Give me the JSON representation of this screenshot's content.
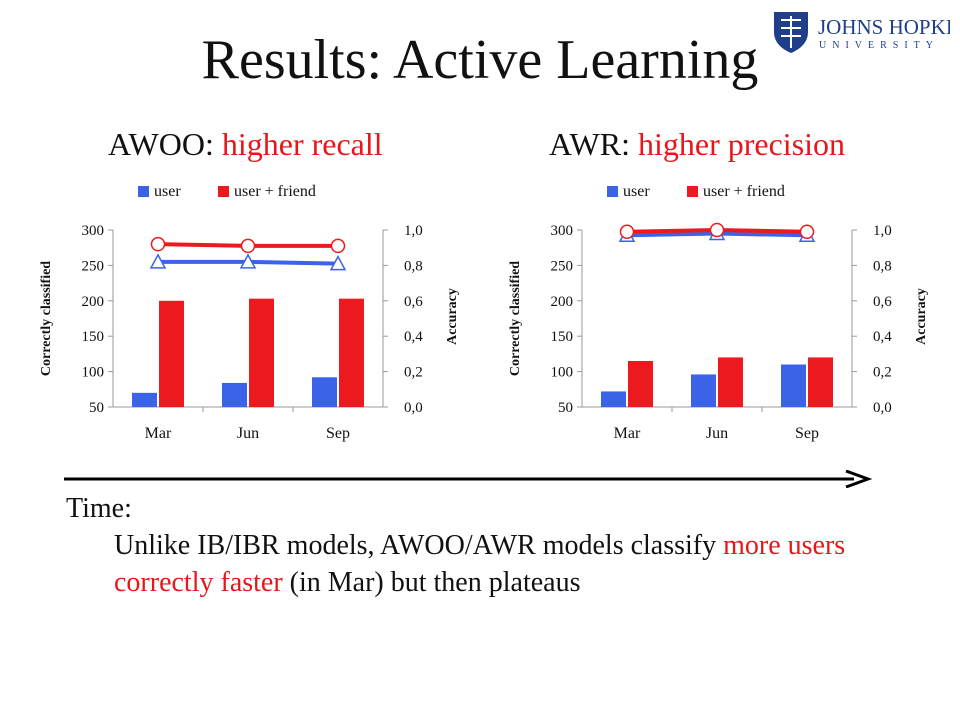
{
  "title": "Results: Active Learning",
  "logo": {
    "line1": "JOHNS HOPKINS",
    "line2": "UNIVERSITY"
  },
  "colors": {
    "user": "#3a63e8",
    "user_friend": "#ec1a1e",
    "accent_text": "#e8161b"
  },
  "panels": [
    {
      "model": "AWOO",
      "separator": ": ",
      "highlight": "higher recall"
    },
    {
      "model": "AWR",
      "separator": ": ",
      "highlight": "higher precision"
    }
  ],
  "chart_data": [
    {
      "type": "bar",
      "categories": [
        "Mar",
        "Jun",
        "Sep"
      ],
      "legend": [
        "user",
        "user + friend"
      ],
      "ylabel": "Correctly classified",
      "ylabel_right": "Accuracy",
      "ylim": [
        50,
        300
      ],
      "yticks": [
        "50",
        "100",
        "150",
        "200",
        "250",
        "300"
      ],
      "ylim_right": [
        0,
        1
      ],
      "yticks_right": [
        "0,0",
        "0,2",
        "0,4",
        "0,6",
        "0,8",
        "1,0"
      ],
      "series": [
        {
          "name": "user",
          "kind": "bar",
          "values": [
            70,
            84,
            92
          ]
        },
        {
          "name": "user + friend",
          "kind": "bar",
          "values": [
            200,
            203,
            203
          ]
        }
      ],
      "accuracy_series": [
        {
          "name": "user",
          "marker": "triangle",
          "values": [
            0.82,
            0.82,
            0.81
          ]
        },
        {
          "name": "user + friend",
          "marker": "circle",
          "values": [
            0.92,
            0.91,
            0.91
          ]
        }
      ]
    },
    {
      "type": "bar",
      "categories": [
        "Mar",
        "Jun",
        "Sep"
      ],
      "legend": [
        "user",
        "user + friend"
      ],
      "ylabel": "Correctly classified",
      "ylabel_right": "Accuracy",
      "ylim": [
        50,
        300
      ],
      "yticks": [
        "50",
        "100",
        "150",
        "200",
        "250",
        "300"
      ],
      "ylim_right": [
        0,
        1
      ],
      "yticks_right": [
        "0,0",
        "0,2",
        "0,4",
        "0,6",
        "0,8",
        "1,0"
      ],
      "series": [
        {
          "name": "user",
          "kind": "bar",
          "values": [
            72,
            96,
            110
          ]
        },
        {
          "name": "user + friend",
          "kind": "bar",
          "values": [
            115,
            120,
            120
          ]
        }
      ],
      "accuracy_series": [
        {
          "name": "user",
          "marker": "triangle",
          "values": [
            0.97,
            0.98,
            0.97
          ]
        },
        {
          "name": "user + friend",
          "marker": "circle",
          "values": [
            0.99,
            1.0,
            0.99
          ]
        }
      ]
    }
  ],
  "body": {
    "heading": "Time:",
    "text_before": "Unlike IB/IBR models, AWOO/AWR models classify ",
    "text_highlight": "more users correctly faster",
    "text_after": " (in Mar) but then plateaus"
  }
}
